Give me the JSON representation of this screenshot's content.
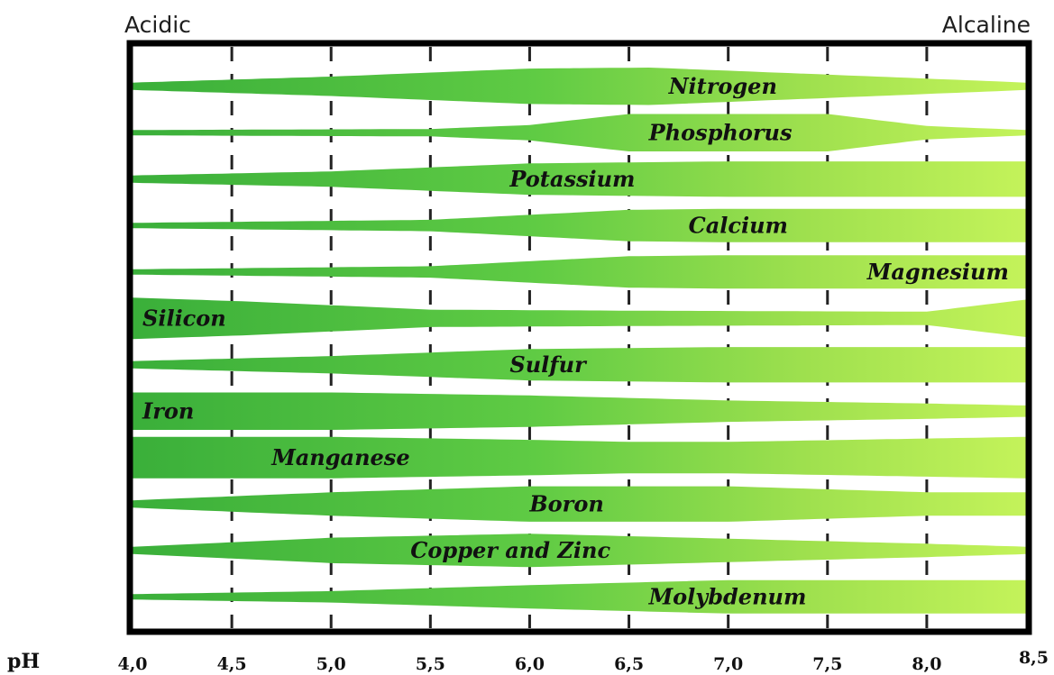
{
  "chart_data": {
    "type": "area",
    "title": "",
    "left_label": "Acidic",
    "right_label": "Alcaline",
    "x_axis_label": "pH",
    "x_ticks": [
      "4,0",
      "4,5",
      "5,0",
      "5,5",
      "6,0",
      "6,5",
      "7,0",
      "7,5",
      "8,0",
      "8,5"
    ],
    "x_range": [
      4.0,
      8.5
    ],
    "value_meaning": "relative availability 0-1 (band thickness)",
    "colors": {
      "band_dark": "#3aaf3a",
      "band_light": "#b6ef52",
      "frame": "#000000",
      "gridline": "#222222"
    },
    "series": [
      {
        "name": "Nitrogen",
        "ph": [
          4.0,
          5.0,
          6.0,
          6.6,
          7.5,
          8.5
        ],
        "availability": [
          0.15,
          0.45,
          0.85,
          0.9,
          0.55,
          0.15
        ]
      },
      {
        "name": "Phosphorus",
        "ph": [
          4.0,
          5.5,
          6.0,
          6.5,
          7.5,
          8.0,
          8.5
        ],
        "availability": [
          0.1,
          0.15,
          0.35,
          0.9,
          0.9,
          0.3,
          0.1
        ]
      },
      {
        "name": "Potassium",
        "ph": [
          4.0,
          5.0,
          6.0,
          7.0,
          8.5
        ],
        "availability": [
          0.15,
          0.35,
          0.75,
          0.85,
          0.85
        ]
      },
      {
        "name": "Calcium",
        "ph": [
          4.0,
          5.5,
          6.5,
          7.0,
          8.5
        ],
        "availability": [
          0.1,
          0.25,
          0.75,
          0.8,
          0.8
        ]
      },
      {
        "name": "Magnesium",
        "ph": [
          4.0,
          5.5,
          6.5,
          7.0,
          8.5
        ],
        "availability": [
          0.1,
          0.25,
          0.75,
          0.8,
          0.8
        ]
      },
      {
        "name": "Silicon",
        "ph": [
          4.0,
          4.6,
          5.5,
          6.5,
          8.0,
          8.5
        ],
        "availability": [
          1.0,
          0.8,
          0.4,
          0.35,
          0.3,
          0.9
        ]
      },
      {
        "name": "Sulfur",
        "ph": [
          4.0,
          5.0,
          6.0,
          7.0,
          8.5
        ],
        "availability": [
          0.15,
          0.4,
          0.75,
          0.85,
          0.85
        ]
      },
      {
        "name": "Iron",
        "ph": [
          4.0,
          5.0,
          6.0,
          7.0,
          8.0,
          8.5
        ],
        "availability": [
          0.9,
          0.9,
          0.75,
          0.5,
          0.35,
          0.25
        ]
      },
      {
        "name": "Manganese",
        "ph": [
          4.0,
          5.0,
          6.0,
          6.5,
          7.0,
          8.5
        ],
        "availability": [
          1.0,
          1.0,
          0.85,
          0.75,
          0.75,
          1.0
        ]
      },
      {
        "name": "Boron",
        "ph": [
          4.0,
          5.0,
          6.0,
          7.0,
          8.0,
          8.5
        ],
        "availability": [
          0.15,
          0.55,
          0.85,
          0.85,
          0.55,
          0.55
        ]
      },
      {
        "name": "Copper and Zinc",
        "ph": [
          4.0,
          5.0,
          6.0,
          7.0,
          8.0,
          8.5
        ],
        "availability": [
          0.15,
          0.6,
          0.8,
          0.55,
          0.3,
          0.15
        ]
      },
      {
        "name": "Molybdenum",
        "ph": [
          4.0,
          5.0,
          6.0,
          7.0,
          8.5
        ],
        "availability": [
          0.1,
          0.25,
          0.55,
          0.8,
          0.8
        ]
      }
    ]
  }
}
